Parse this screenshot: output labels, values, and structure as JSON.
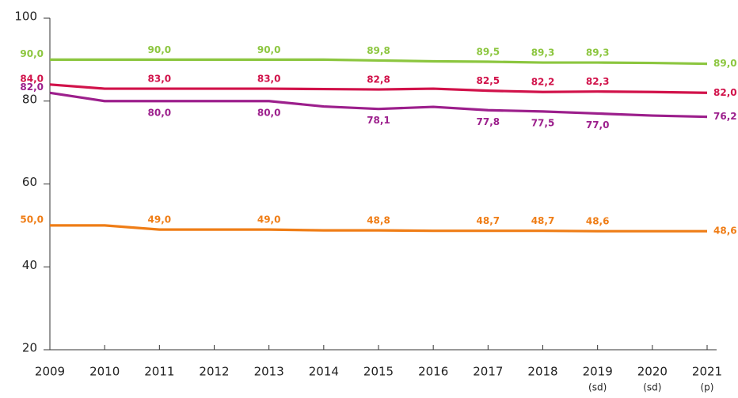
{
  "chart_data": {
    "type": "line",
    "categories": [
      "2009",
      "2010",
      "2011",
      "2012",
      "2013",
      "2014",
      "2015",
      "2016",
      "2017",
      "2018",
      "2019",
      "2020",
      "2021"
    ],
    "category_sublabels": [
      null,
      null,
      null,
      null,
      null,
      null,
      null,
      null,
      null,
      null,
      "(sd)",
      "(sd)",
      "(p)"
    ],
    "ylim": [
      20,
      100
    ],
    "yticks": [
      20,
      40,
      60,
      80,
      100
    ],
    "series": [
      {
        "color": "#8cc63f",
        "values": [
          90.0,
          90.0,
          90.0,
          90.0,
          90.0,
          90.0,
          89.8,
          89.6,
          89.5,
          89.3,
          89.3,
          89.2,
          89.0
        ],
        "value_labels": [
          "90,0",
          null,
          "90,0",
          null,
          "90,0",
          null,
          "89,8",
          null,
          "89,5",
          "89,3",
          "89,3",
          null,
          "89,0"
        ]
      },
      {
        "color": "#d1124a",
        "values": [
          84.0,
          83.0,
          83.0,
          83.0,
          83.0,
          82.9,
          82.8,
          83.0,
          82.5,
          82.2,
          82.3,
          82.2,
          82.0
        ],
        "value_labels": [
          "84,0",
          null,
          "83,0",
          null,
          "83,0",
          null,
          "82,8",
          null,
          "82,5",
          "82,2",
          "82,3",
          null,
          "82,0"
        ]
      },
      {
        "color": "#9c1f8c",
        "values": [
          82.0,
          80.0,
          80.0,
          80.0,
          80.0,
          78.7,
          78.1,
          78.6,
          77.8,
          77.5,
          77.0,
          76.5,
          76.2
        ],
        "value_labels": [
          "82,0",
          null,
          "80,0",
          null,
          "80,0",
          null,
          "78,1",
          null,
          "77,8",
          "77,5",
          "77,0",
          null,
          "76,2"
        ]
      },
      {
        "color": "#ef7d16",
        "values": [
          50.0,
          50.0,
          49.0,
          49.0,
          49.0,
          48.8,
          48.8,
          48.7,
          48.7,
          48.7,
          48.6,
          48.6,
          48.6
        ],
        "value_labels": [
          "50,0",
          null,
          "49,0",
          null,
          "49,0",
          null,
          "48,8",
          null,
          "48,7",
          "48,7",
          "48,6",
          null,
          "48,6"
        ]
      }
    ]
  }
}
